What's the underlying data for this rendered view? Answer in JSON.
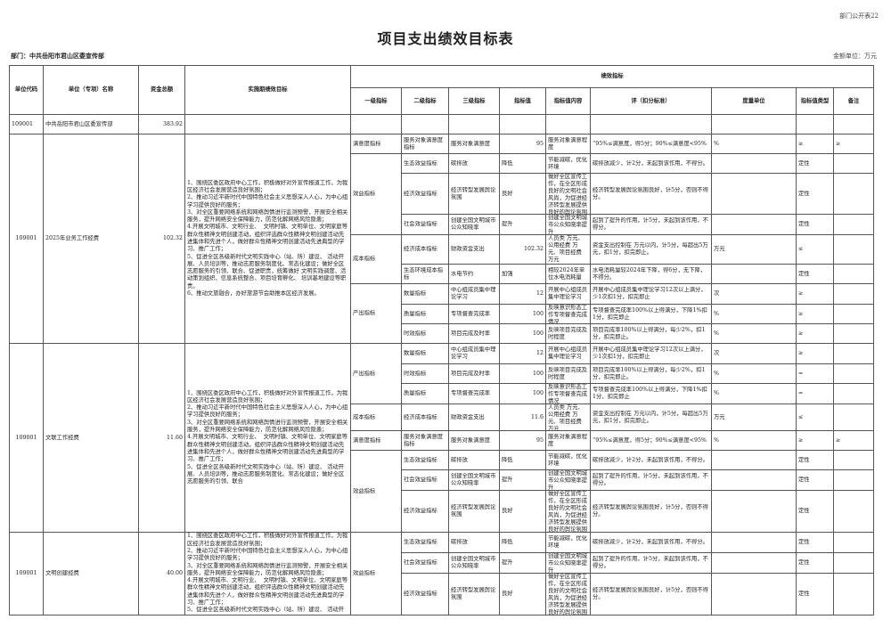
{
  "corner_label": "部门公开表22",
  "title": "项目支出绩效目标表",
  "department": "部门：中共岳阳市君山区委宣传部",
  "amount_unit": "金额单位：万元",
  "headers": {
    "code": "单位代码",
    "name": "单位（专项）名称",
    "amount": "资金总额",
    "goal": "实施期绩效目标",
    "perf": "绩效指标",
    "l1": "一级指标",
    "l2": "二级指标",
    "l3": "三级指标",
    "value": "指标值",
    "content": "指标值内容",
    "standard": "评（扣分标准）",
    "unit": "度量单位",
    "type": "指标值类型",
    "remark": "备注"
  },
  "summary": {
    "code": "109001",
    "name": "中共岳阳市君山区委宣传部",
    "amount": "383.92"
  },
  "projects": [
    {
      "code": "109001",
      "name": "2025年业务工作经费",
      "amount": "102.32",
      "goal": "1、围绕区委区政府中心工作，积极做好对外宣传报道工作，为我区经济社会发展营造良好氛围；\n2、推动习近平新时代中国特色社会主义思想深入人心，为中心组学习提供良好的服务；\n3、对全区重要网络系统和网络舆情进行监测预警，开展安全相关服务，提升网络安全保障能力，防范化解网络风险隐患；\n4.开展文明城市、文明行业、  文明村镇、文明单位、文明家庭等群众性精神文明创建活动，组织评选群众性精神文明创建活动先进集体和先进个人，做好群众性精神文明创建活动先进典型的学习、推广工作；\n5、促进全区各级新时代文明实践中心（站、所）建设、 活动开展、人员培训等，推动志愿服务制度化、常态化建设；做好全区志愿服务的引领、联合、促进职责，统筹做好 文明实践调度、活动策划组织、信息系统整合、项目培育孵化、 培训基地建设等职责。\n6、推动文旅融合，办好旅游节会助推本区经济发展。",
      "indicators": [
        {
          "l1": "满意度指标",
          "l2": "服务对象满意度指标",
          "l3": "服务对象满意度",
          "value": "95",
          "content": "服务对象满意程度",
          "standard": "“95%≤满意度，得5分；90%≤满意度<95%",
          "unit": "%",
          "type": "≥",
          "remark": "≥"
        },
        {
          "l1": "效益指标",
          "l2": "生态效益指标",
          "l3": "碳排放",
          "value": "降低",
          "content": "节能减碳，优化环境",
          "standard": "碳排放减少，计2分，未起到该作用，不得分。",
          "unit": "",
          "type": "定性",
          "remark": ""
        },
        {
          "l1": "效益指标",
          "l2": "经济效益指标",
          "l3": "经济转型发展舆论氛围",
          "value": "良好",
          "content": "做好全区宣传工作，在全区形成良好的文明社会风尚，为促进经济转型发展提供良好的舆论氛围",
          "standard": "经济转型发展舆论氛围良好，计5分，否则不得分。",
          "unit": "",
          "type": "定性",
          "remark": ""
        },
        {
          "l1": "效益指标",
          "l2": "社会效益指标",
          "l3": "创建全国文明城市公众知晓率",
          "value": "提升",
          "content": "创建全国文明城市公众知晓率提升",
          "standard": "起到了提升的作用，计5分，未起到该作用，不得分。",
          "unit": "",
          "type": "定性",
          "remark": ""
        },
        {
          "l1": "成本指标",
          "l2": "经济成本指标",
          "l3": "财政资金支出",
          "value": "102.32",
          "content": "人员类  万元、公用经费  万元、项目经费  万元",
          "standard": "资金支出控制在 万元以内，计5分，每超出5万元，扣1分，扣完即止。",
          "unit": "万元",
          "type": "≤",
          "remark": ""
        },
        {
          "l1": "成本指标",
          "l2": "生态环境成本指标",
          "l3": "水电节约",
          "value": "加强",
          "content": "相较2024年单位水电消耗量",
          "standard": "水电消耗量较2024年下降，得6分，无下降，不得分。",
          "unit": "",
          "type": "定性",
          "remark": ""
        },
        {
          "l1": "产出指标",
          "l2": "数量指标",
          "l3": "中心组成员集中理论学习",
          "value": "12",
          "content": "开展中心组成员集中理论学习",
          "standard": "开展中心组成员集中理论学习12次以上满分，少1次扣1分，扣完即止",
          "unit": "次",
          "type": "≥",
          "remark": ""
        },
        {
          "l1": "产出指标",
          "l2": "质量指标",
          "l3": "专项督查完成率",
          "value": "100",
          "content": "反映意识形态工作专项督查完成情况",
          "standard": "专项督查完成率100%以上得满分，下降1%扣1分，扣完即止",
          "unit": "%",
          "type": "≥",
          "remark": ""
        },
        {
          "l1": "产出指标",
          "l2": "时效指标",
          "l3": "项目完成及时率",
          "value": "100",
          "content": "反映项目完成及时程度",
          "standard": "项目完成率100%以上得满分，每少2%，扣1分，扣完即止。",
          "unit": "%",
          "type": "≥",
          "remark": ""
        }
      ]
    },
    {
      "code": "109001",
      "name": "文联工作经费",
      "amount": "11.60",
      "goal": "1、围绕区委区政府中心工作，积极做好对外宣传报道工作，为我区经济社会发展营造良好氛围；\n2、推动习近平新时代中国特色社会主义思想深入人心，为中心组学习提供良好的服务；\n3、对全区重要网络系统和网络舆情进行监测预警，开展安全相关服务，提升网络安全保障能力，防范化解网络风险隐患；\n4.开展文明城市、文明行业、  文明村镇、文明单位、文明家庭等群众性精神文明创建活动，组织评选群众性精神文明创建活动先进集体和先进个人，做好群众性精神文明创建活动先进典型的学习、推广工作；\n5、促进全区各级新时代文明实践中心（站、所）建设、 活动开展、人员培训等，推动志愿服务制度化、常态化建设；做好全区志愿服务的引领、联合",
      "indicators": [
        {
          "l1": "产出指标",
          "l2": "数量指标",
          "l3": "中心组成员集中理论学习",
          "value": "12",
          "content": "开展中心组成员集中理论学习",
          "standard": "开展中心组成员集中理论学习12次以上满分，少1次扣1分，扣完即止",
          "unit": "次",
          "type": "≥",
          "remark": ""
        },
        {
          "l1": "产出指标",
          "l2": "时效指标",
          "l3": "项目完成及时率",
          "value": "100",
          "content": "反映项目完成及时程度",
          "standard": "项目完成率100%以上得满分，每少2%，扣1分，扣完即止。",
          "unit": "%",
          "type": "=",
          "remark": ""
        },
        {
          "l1": "产出指标",
          "l2": "质量指标",
          "l3": "专项督查完成率",
          "value": "100",
          "content": "反映意识形态工作专项督查完成情况",
          "standard": "专项督查完成率100%以上得满分，下降1%扣1分，扣完即止",
          "unit": "%",
          "type": "=",
          "remark": ""
        },
        {
          "l1": "成本指标",
          "l2": "经济成本指标",
          "l3": "财政资金支出",
          "value": "11.6",
          "content": "人员类  万元、公用经费  万元、项目经费  万元",
          "standard": "资金支出控制在 万元以内，计5分，每超出5万元，扣1分，扣完即止。",
          "unit": "万元",
          "type": "≤",
          "remark": ""
        },
        {
          "l1": "满意度指标",
          "l2": "服务对象满意度指标",
          "l3": "服务对象满意度",
          "value": "95",
          "content": "服务对象满意程度",
          "standard": "“95%≤满意度，得5分；90%≤满意度<95%",
          "unit": "%",
          "type": "≥",
          "remark": "≥"
        },
        {
          "l1": "效益指标",
          "l2": "生态效益指标",
          "l3": "碳排放",
          "value": "降低",
          "content": "节能减碳，优化环境",
          "standard": "碳排放减少，计2分，未起到该作用，不得分。",
          "unit": "",
          "type": "定性",
          "remark": ""
        },
        {
          "l1": "效益指标",
          "l2": "社会效益指标",
          "l3": "创建全国文明城市公众知晓率",
          "value": "提升",
          "content": "创建全国文明城市公众知晓率提升",
          "standard": "起到了提升的作用，计5分，未起到该作用，不得分。",
          "unit": "",
          "type": "定性",
          "remark": ""
        },
        {
          "l1": "效益指标",
          "l2": "经济效益指标",
          "l3": "经济转型发展舆论氛围",
          "value": "良好",
          "content": "做好全区宣传工作，在全区形成良好的文明社会风尚，为促进经济转型发展提供良好的舆论氛围",
          "standard": "经济转型发展舆论氛围良好，计5分，否则不得分。",
          "unit": "",
          "type": "定性",
          "remark": ""
        }
      ]
    },
    {
      "code": "109001",
      "name": "文明创建经费",
      "amount": "40.00",
      "goal": "1、围绕区委区政府中心工作，积极做好对外宣传报道工作，为我区经济社会发展营造良好氛围；\n2、推动习近平新时代中国特色社会主义思想深入人心，为中心组学习提供良好的服务；\n3、对全区重要网络系统和网络舆情进行监测预警，开展安全相关服务，提升网络安全保障能力，防范化解网络风险隐患；\n4.开展文明城市、文明行业、  文明村镇、文明单位、文明家庭等群众性精神文明创建活动，组织评选群众性精神文明创建活动先进集体和先进个人，做好群众性精神文明创建活动先进典型的学习、推广工作；\n5、促进全区各级新时代文明实践中心（站、所）建设、 活动开",
      "indicators": [
        {
          "l1": "效益指标",
          "l2": "生态效益指标",
          "l3": "碳排放",
          "value": "降低",
          "content": "节能减碳，优化环境",
          "standard": "碳排放减少，计2分，未起到该作用，不得分。",
          "unit": "",
          "type": "定性",
          "remark": ""
        },
        {
          "l1": "效益指标",
          "l2": "社会效益指标",
          "l3": "创建全国文明城市公众知晓率",
          "value": "提升",
          "content": "创建全国文明城市公众知晓率提升",
          "standard": "起到了提升的作用，计5分，未起到该作用，不得分。",
          "unit": "",
          "type": "定性",
          "remark": ""
        },
        {
          "l1": "效益指标",
          "l2": "经济效益指标",
          "l3": "经济转型发展舆论氛围",
          "value": "良好",
          "content": "做好全区宣传工作，在全区形成良好的文明社会风尚，为促进经济转型发展提供良好的舆论氛围",
          "standard": "经济转型发展舆论氛围良好，计5分，否则不得分。",
          "unit": "",
          "type": "定性",
          "remark": ""
        }
      ]
    }
  ]
}
